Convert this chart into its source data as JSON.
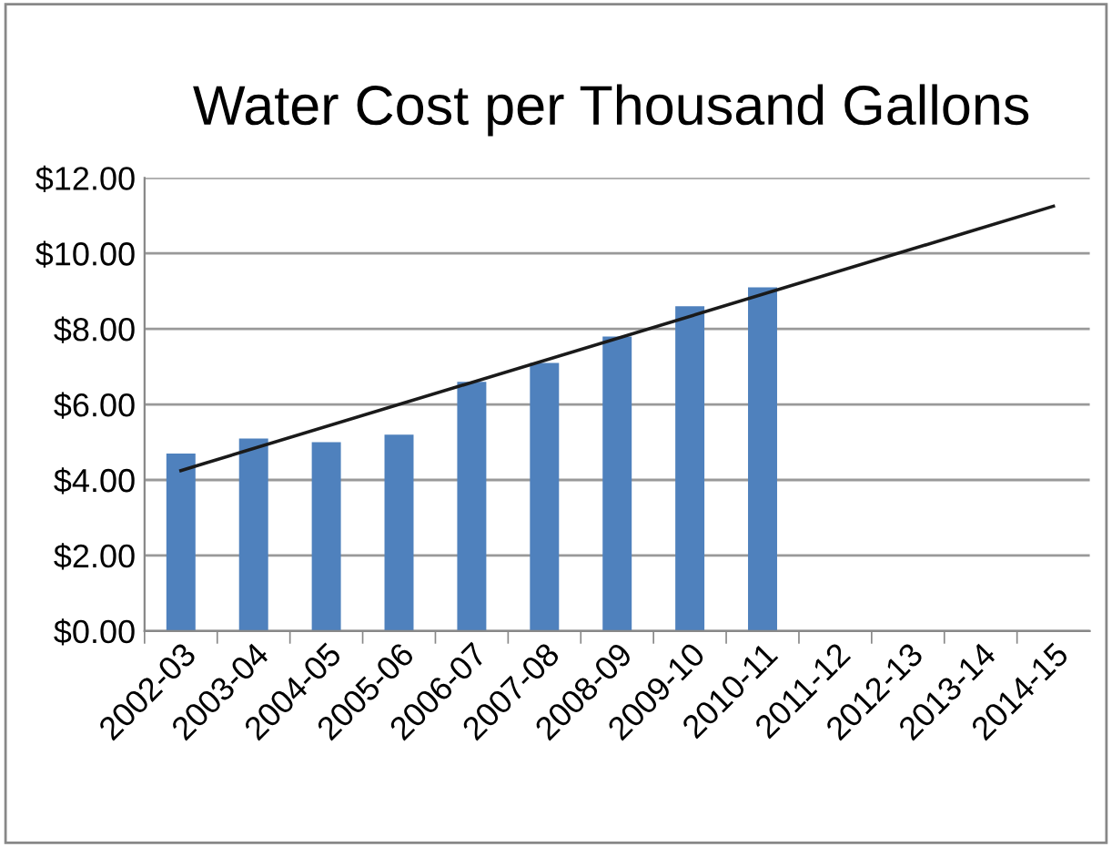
{
  "chart_data": {
    "type": "bar",
    "title": "Water Cost per Thousand Gallons",
    "categories": [
      "2002-03",
      "2003-04",
      "2004-05",
      "2005-06",
      "2006-07",
      "2007-08",
      "2008-09",
      "2009-10",
      "2010-11",
      "2011-12",
      "2012-13",
      "2013-14",
      "2014-15"
    ],
    "series": [
      {
        "color": "#4f81bd",
        "values": [
          4.7,
          5.1,
          5.0,
          5.2,
          6.6,
          7.1,
          7.8,
          8.6,
          9.1,
          null,
          null,
          null,
          null
        ]
      },
      {
        "type": "line",
        "color": "#1a1a1a",
        "values": [
          4.25,
          null,
          null,
          null,
          null,
          null,
          null,
          null,
          null,
          null,
          null,
          null,
          11.25
        ]
      }
    ],
    "ylim": [
      0,
      12
    ],
    "yticks": [
      {
        "value": 0,
        "label": "$0.00"
      },
      {
        "value": 2,
        "label": "$2.00"
      },
      {
        "value": 4,
        "label": "$4.00"
      },
      {
        "value": 6,
        "label": "$6.00"
      },
      {
        "value": 8,
        "label": "$8.00"
      },
      {
        "value": 10,
        "label": "$10.00"
      },
      {
        "value": 12,
        "label": "$12.00"
      }
    ],
    "grid": "y",
    "legend": false
  }
}
